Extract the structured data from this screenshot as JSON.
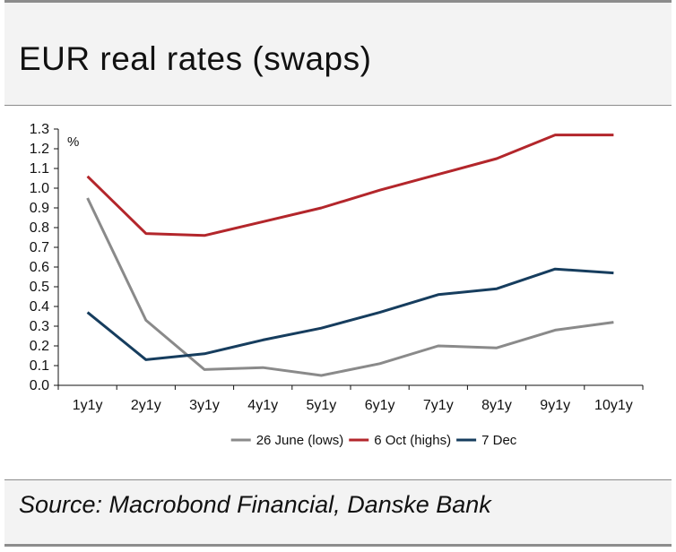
{
  "title": "EUR real rates (swaps)",
  "source": "Source: Macrobond Financial, Danske Bank",
  "chart_data": {
    "type": "line",
    "title": "EUR real rates (swaps)",
    "ylabel": "%",
    "xlabel": "",
    "ylim": [
      0.0,
      1.3
    ],
    "ytick_step": 0.1,
    "categories": [
      "1y1y",
      "2y1y",
      "3y1y",
      "4y1y",
      "5y1y",
      "6y1y",
      "7y1y",
      "8y1y",
      "9y1y",
      "10y1y"
    ],
    "series": [
      {
        "name": "26 June (lows)",
        "color": "#8a8a8a",
        "values": [
          0.95,
          0.33,
          0.08,
          0.09,
          0.05,
          0.11,
          0.2,
          0.19,
          0.28,
          0.32
        ]
      },
      {
        "name": "6 Oct (highs)",
        "color": "#b3262b",
        "values": [
          1.06,
          0.77,
          0.76,
          0.83,
          0.9,
          0.99,
          1.07,
          1.15,
          1.27,
          1.27
        ]
      },
      {
        "name": "7 Dec",
        "color": "#163d5e",
        "values": [
          0.37,
          0.13,
          0.16,
          0.23,
          0.29,
          0.37,
          0.46,
          0.49,
          0.59,
          0.57
        ]
      }
    ],
    "legend_position": "bottom-center",
    "grid": false
  }
}
